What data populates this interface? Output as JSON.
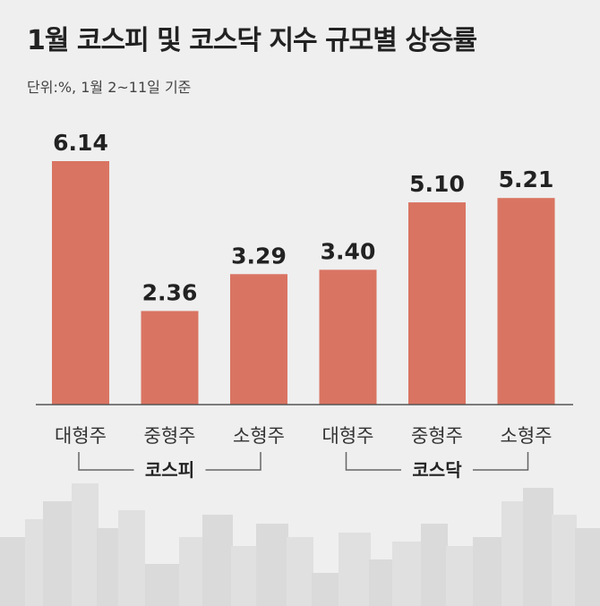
{
  "chart_data": {
    "type": "bar",
    "title": "1월 코스피 및 코스닥 지수 규모별 상승률",
    "subtitle": "단위:%, 1월 2~11일 기준",
    "categories": [
      "대형주",
      "중형주",
      "소형주",
      "대형주",
      "중형주",
      "소형주"
    ],
    "values": [
      6.14,
      2.36,
      3.29,
      3.4,
      5.1,
      5.21
    ],
    "value_labels": [
      "6.14",
      "2.36",
      "3.29",
      "3.40",
      "5.10",
      "5.21"
    ],
    "groups": [
      {
        "name": "코스피",
        "members": [
          0,
          1,
          2
        ]
      },
      {
        "name": "코스닥",
        "members": [
          3,
          4,
          5
        ]
      }
    ],
    "bar_color": "#d97462",
    "ylim": [
      0,
      6.14
    ],
    "grid": false
  }
}
